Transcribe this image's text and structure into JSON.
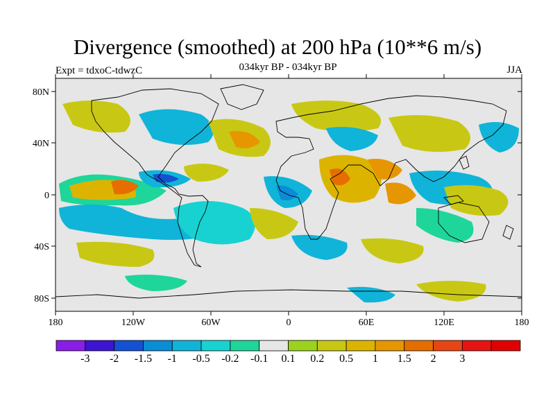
{
  "title": "Divergence (smoothed) at 200 hPa (10**6 m/s)",
  "subtitle_center": "034kyr BP - 034kyr BP",
  "subtitle_left": "Expt = tdxoC-tdwzC",
  "subtitle_right": "JJA",
  "map": {
    "background_color": "#e6e6e6",
    "lat_ticks": [
      "80N",
      "40N",
      "0",
      "40S",
      "80S"
    ],
    "lon_ticks": [
      "180",
      "120W",
      "60W",
      "0",
      "60E",
      "120E",
      "180"
    ]
  },
  "colorbar": {
    "colors": [
      "#8a1ee6",
      "#3c14d2",
      "#1450d2",
      "#0a8cd7",
      "#10b4d8",
      "#18d2d2",
      "#1ed69a",
      "#e6e6e6",
      "#9bd21e",
      "#c8c814",
      "#dcb400",
      "#e69600",
      "#e66e00",
      "#e64614",
      "#e61414",
      "#e10000"
    ],
    "labels": [
      "-3",
      "-2",
      "-1.5",
      "-1",
      "-0.5",
      "-0.2",
      "-0.1",
      "0.1",
      "0.2",
      "0.5",
      "1",
      "1.5",
      "2",
      "3"
    ]
  }
}
